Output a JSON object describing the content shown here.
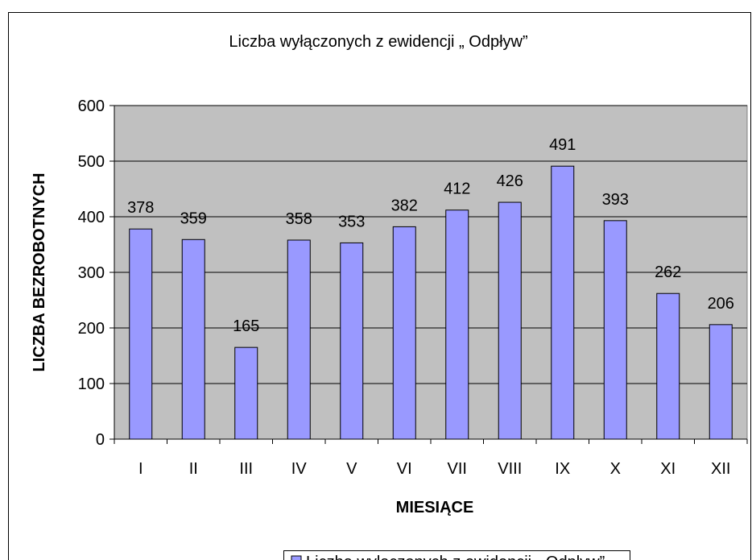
{
  "chart_data": {
    "type": "bar",
    "title": "Liczba wyłączonych z ewidencji „ Odpływ”",
    "x_label": "MIESIĄCE",
    "y_label": "LICZBA BEZROBOTNYCH",
    "categories": [
      "I",
      "II",
      "III",
      "IV",
      "V",
      "VI",
      "VII",
      "VIII",
      "IX",
      "X",
      "XI",
      "XII"
    ],
    "series": [
      {
        "name": "Liczba wyłączonych z ewidencji „ Odpływ”",
        "color": "#9999ff",
        "values": [
          378,
          359,
          165,
          358,
          353,
          382,
          412,
          426,
          491,
          393,
          262,
          206
        ]
      }
    ],
    "ylim": [
      0,
      600
    ],
    "yticks": [
      0,
      100,
      200,
      300,
      400,
      500,
      600
    ],
    "grid": true,
    "legend": "bottom"
  }
}
